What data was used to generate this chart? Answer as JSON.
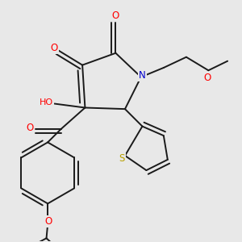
{
  "background_color": "#e8e8e8",
  "bond_color": "#1a1a1a",
  "atom_colors": {
    "O": "#ff0000",
    "N": "#0000cc",
    "S": "#b8a000",
    "HO": "#4a9a9a",
    "C": "#1a1a1a"
  }
}
